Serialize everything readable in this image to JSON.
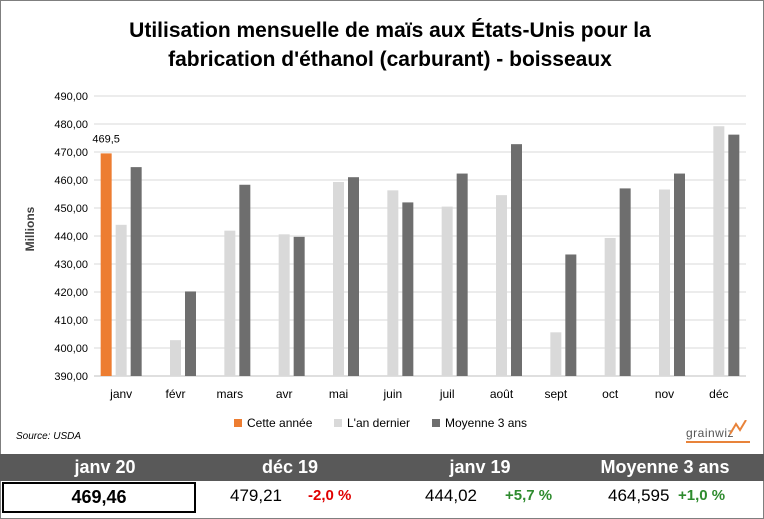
{
  "colors": {
    "current": "#ed7d31",
    "last_year": "#d9d9d9",
    "avg3": "#6e6e6e",
    "header_bg": "#595959",
    "negative": "#e00000",
    "positive": "#2e8b2e"
  },
  "chart_data": {
    "type": "bar",
    "title_line1": "Utilisation mensuelle de maïs aux États-Unis pour la",
    "title_line2": "fabrication d'éthanol (carburant) - boisseaux",
    "ylabel": "Millions",
    "ylim": [
      390,
      490
    ],
    "yticks": [
      "390,00",
      "400,00",
      "410,00",
      "420,00",
      "430,00",
      "440,00",
      "450,00",
      "460,00",
      "470,00",
      "480,00",
      "490,00"
    ],
    "categories": [
      "janv",
      "févr",
      "mars",
      "avr",
      "mai",
      "juin",
      "juil",
      "août",
      "sept",
      "oct",
      "nov",
      "déc"
    ],
    "series": [
      {
        "name": "Cette année",
        "values": [
          469.5,
          null,
          null,
          null,
          null,
          null,
          null,
          null,
          null,
          null,
          null,
          null
        ]
      },
      {
        "name": "L'an dernier",
        "values": [
          444.0,
          402.8,
          441.9,
          440.6,
          459.3,
          456.3,
          450.5,
          454.6,
          405.6,
          439.3,
          456.6,
          479.2
        ]
      },
      {
        "name": "Moyenne 3 ans",
        "values": [
          464.6,
          420.2,
          458.3,
          439.7,
          461.0,
          452.0,
          462.3,
          472.8,
          433.4,
          457.0,
          462.3,
          476.2
        ]
      }
    ],
    "data_label": "469,5",
    "grid": true,
    "legend_position": "bottom"
  },
  "source": "Source: USDA",
  "logo": "grainwiz",
  "summary": {
    "headers": [
      "janv 20",
      "déc 19",
      "janv 19",
      "Moyenne 3 ans"
    ],
    "current_value": "469,46",
    "dec19_value": "479,21",
    "dec19_change": "-2,0 %",
    "jan19_value": "444,02",
    "jan19_change": "+5,7 %",
    "avg3_value": "464,595",
    "avg3_change": "+1,0 %"
  }
}
